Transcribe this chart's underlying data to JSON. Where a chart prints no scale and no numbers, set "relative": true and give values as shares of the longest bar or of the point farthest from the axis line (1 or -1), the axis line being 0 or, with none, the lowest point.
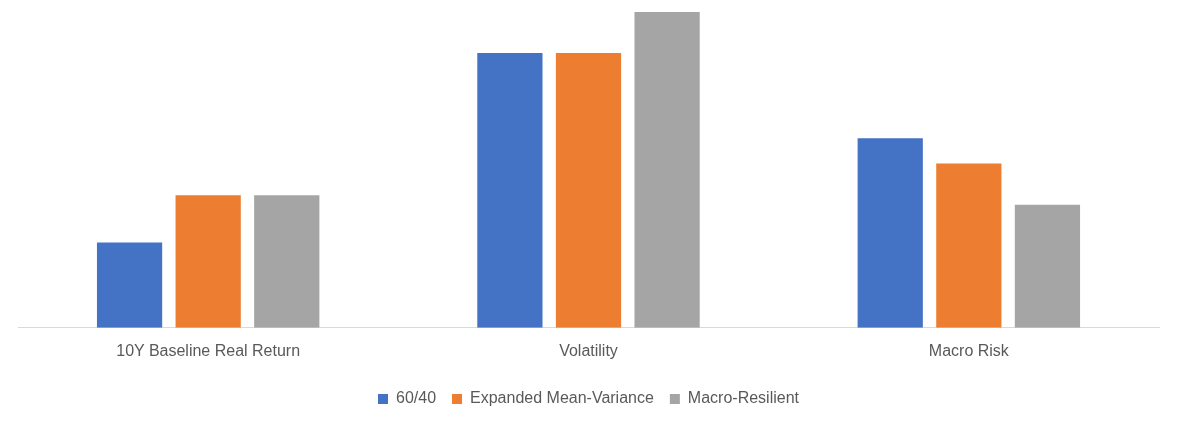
{
  "chart_data": {
    "type": "bar",
    "relative": true,
    "legend": "bottom",
    "categories": [
      "10Y Baseline Real Return",
      "Volatility",
      "Macro Risk"
    ],
    "series": [
      {
        "name": "60/40",
        "color": "#4472c4",
        "values": [
          0.27,
          0.87,
          0.6
        ]
      },
      {
        "name": "Expanded Mean-Variance",
        "color": "#ed7d31",
        "values": [
          0.42,
          0.87,
          0.52
        ]
      },
      {
        "name": "Macro-Resilient",
        "color": "#a5a5a5",
        "values": [
          0.42,
          1,
          0.39
        ]
      }
    ]
  }
}
